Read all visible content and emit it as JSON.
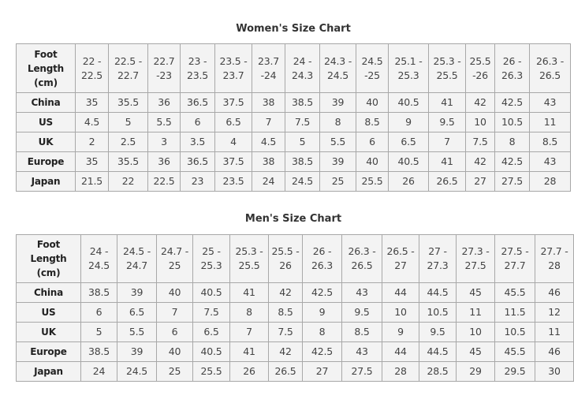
{
  "women": {
    "title": "Women's Size Chart",
    "header_label": "Foot Length (cm)",
    "foot_lengths": [
      "22 - 22.5",
      "22.5 - 22.7",
      "22.7 -23",
      "23 - 23.5",
      "23.5 - 23.7",
      "23.7 -24",
      "24 - 24.3",
      "24.3 - 24.5",
      "24.5 -25",
      "25.1 - 25.3",
      "25.3 - 25.5",
      "25.5 -26",
      "26 - 26.3",
      "26.3 - 26.5"
    ],
    "rows": [
      {
        "label": "China",
        "values": [
          "35",
          "35.5",
          "36",
          "36.5",
          "37.5",
          "38",
          "38.5",
          "39",
          "40",
          "40.5",
          "41",
          "42",
          "42.5",
          "43"
        ]
      },
      {
        "label": "US",
        "values": [
          "4.5",
          "5",
          "5.5",
          "6",
          "6.5",
          "7",
          "7.5",
          "8",
          "8.5",
          "9",
          "9.5",
          "10",
          "10.5",
          "11"
        ]
      },
      {
        "label": "UK",
        "values": [
          "2",
          "2.5",
          "3",
          "3.5",
          "4",
          "4.5",
          "5",
          "5.5",
          "6",
          "6.5",
          "7",
          "7.5",
          "8",
          "8.5"
        ]
      },
      {
        "label": "Europe",
        "values": [
          "35",
          "35.5",
          "36",
          "36.5",
          "37.5",
          "38",
          "38.5",
          "39",
          "40",
          "40.5",
          "41",
          "42",
          "42.5",
          "43"
        ]
      },
      {
        "label": "Japan",
        "values": [
          "21.5",
          "22",
          "22.5",
          "23",
          "23.5",
          "24",
          "24.5",
          "25",
          "25.5",
          "26",
          "26.5",
          "27",
          "27.5",
          "28"
        ]
      }
    ]
  },
  "men": {
    "title": "Men's Size Chart",
    "header_label": "Foot Length (cm)",
    "foot_lengths": [
      "24 - 24.5",
      "24.5 - 24.7",
      "24.7 - 25",
      "25 - 25.3",
      "25.3 - 25.5",
      "25.5 - 26",
      "26 - 26.3",
      "26.3 - 26.5",
      "26.5 - 27",
      "27 - 27.3",
      "27.3 - 27.5",
      "27.5 - 27.7",
      "27.7 - 28"
    ],
    "rows": [
      {
        "label": "China",
        "values": [
          "38.5",
          "39",
          "40",
          "40.5",
          "41",
          "42",
          "42.5",
          "43",
          "44",
          "44.5",
          "45",
          "45.5",
          "46"
        ]
      },
      {
        "label": "US",
        "values": [
          "6",
          "6.5",
          "7",
          "7.5",
          "8",
          "8.5",
          "9",
          "9.5",
          "10",
          "10.5",
          "11",
          "11.5",
          "12"
        ]
      },
      {
        "label": "UK",
        "values": [
          "5",
          "5.5",
          "6",
          "6.5",
          "7",
          "7.5",
          "8",
          "8.5",
          "9",
          "9.5",
          "10",
          "10.5",
          "11"
        ]
      },
      {
        "label": "Europe",
        "values": [
          "38.5",
          "39",
          "40",
          "40.5",
          "41",
          "42",
          "42.5",
          "43",
          "44",
          "44.5",
          "45",
          "45.5",
          "46"
        ]
      },
      {
        "label": "Japan",
        "values": [
          "24",
          "24.5",
          "25",
          "25.5",
          "26",
          "26.5",
          "27",
          "27.5",
          "28",
          "28.5",
          "29",
          "29.5",
          "30"
        ]
      }
    ]
  }
}
